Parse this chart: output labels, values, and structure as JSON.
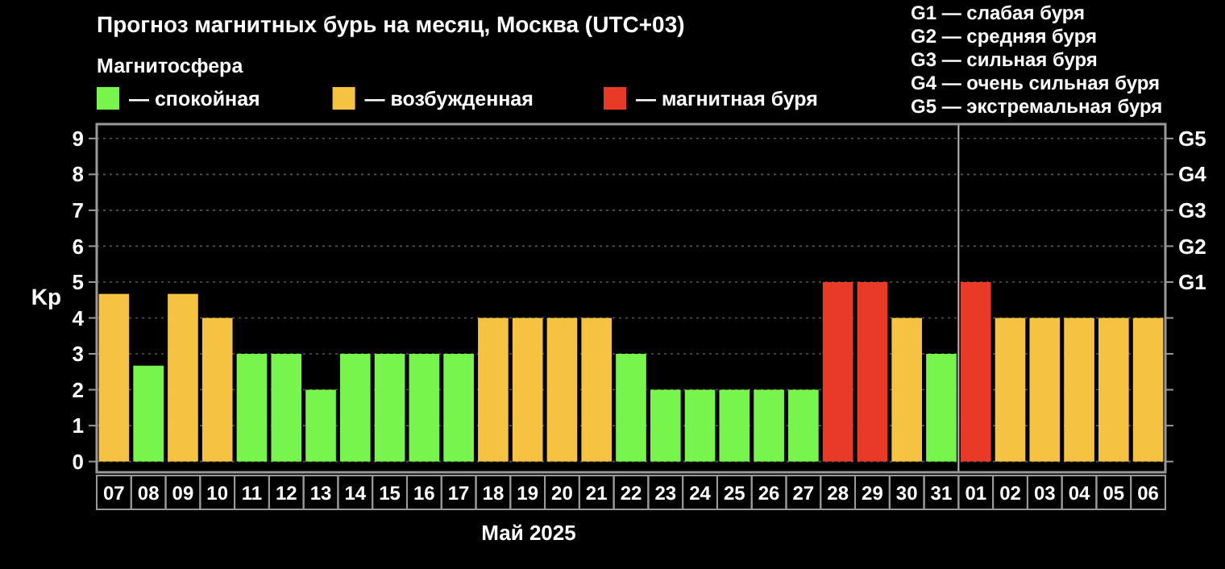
{
  "chart_data": {
    "type": "bar",
    "title": "Прогноз магнитных бурь на месяц, Москва (UTC+03)",
    "legend_title": "Магнитосфера",
    "xlabel": "Май 2025",
    "ylabel": "Kp",
    "annotations": [
      "G1 — слабая буря",
      "G2 — средняя буря",
      "G3 — сильная буря",
      "G4 — очень сильная буря",
      "G5 — экстремальная буря",
      "G1",
      "G2",
      "G3",
      "G4",
      "G5"
    ],
    "categories": [
      "07",
      "08",
      "09",
      "10",
      "11",
      "12",
      "13",
      "14",
      "15",
      "16",
      "17",
      "18",
      "19",
      "20",
      "21",
      "22",
      "23",
      "24",
      "25",
      "26",
      "27",
      "28",
      "29",
      "30",
      "31",
      "01",
      "02",
      "03",
      "04",
      "05",
      "06"
    ],
    "series": [
      {
        "name": "— спокойная",
        "color": "#77f54c",
        "values": [
          null,
          2.67,
          null,
          null,
          3,
          3,
          2,
          3,
          3,
          3,
          3,
          null,
          null,
          null,
          null,
          3,
          2,
          2,
          2,
          2,
          2,
          null,
          null,
          null,
          3,
          null,
          null,
          null,
          null,
          null,
          null
        ]
      },
      {
        "name": "— возбужденная",
        "color": "#f5c242",
        "values": [
          4.67,
          null,
          4.67,
          4,
          null,
          null,
          null,
          null,
          null,
          null,
          null,
          4,
          4,
          4,
          4,
          null,
          null,
          null,
          null,
          null,
          null,
          null,
          null,
          4,
          null,
          null,
          4,
          4,
          4,
          4,
          4
        ]
      },
      {
        "name": "— магнитная буря",
        "color": "#e83a26",
        "values": [
          null,
          null,
          null,
          null,
          null,
          null,
          null,
          null,
          null,
          null,
          null,
          null,
          null,
          null,
          null,
          null,
          null,
          null,
          null,
          null,
          null,
          5,
          5,
          null,
          null,
          5,
          null,
          null,
          null,
          null,
          null
        ]
      }
    ],
    "ylim": [
      -0.3,
      9.4
    ],
    "yticks": [
      0,
      1,
      2,
      3,
      4,
      5,
      6,
      7,
      8,
      9
    ],
    "ref_lines": [
      {
        "axis": "x",
        "value": "01",
        "color": "#bbbbbb"
      }
    ],
    "grid": "y",
    "legend": "top left"
  }
}
